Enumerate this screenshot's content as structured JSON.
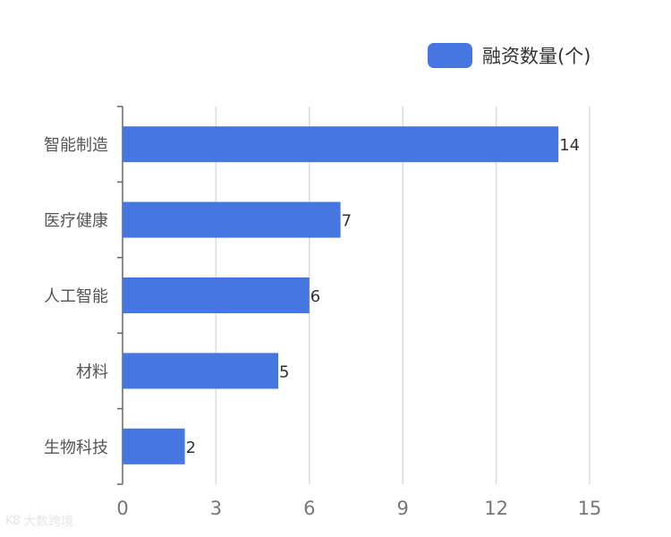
{
  "colors": {
    "bar": "#4677e0",
    "grid": "#d9dde3",
    "axis": "#666666",
    "category_text": "#555555",
    "tick_text": "#777777",
    "value_text": "#333333"
  },
  "legend": {
    "label": "融资数量(个)"
  },
  "watermark": {
    "icon": "K8",
    "text": "大数跨境"
  },
  "chart_data": {
    "type": "bar",
    "orientation": "horizontal",
    "categories": [
      "智能制造",
      "医疗健康",
      "人工智能",
      "材料",
      "生物科技"
    ],
    "series": [
      {
        "name": "融资数量(个)",
        "values": [
          14,
          7,
          6,
          5,
          2
        ]
      }
    ],
    "xlim": [
      0,
      15
    ],
    "xticks": [
      0,
      3,
      6,
      9,
      12,
      15
    ],
    "grid": true,
    "legend_position": "top-right",
    "data_labels": true
  }
}
